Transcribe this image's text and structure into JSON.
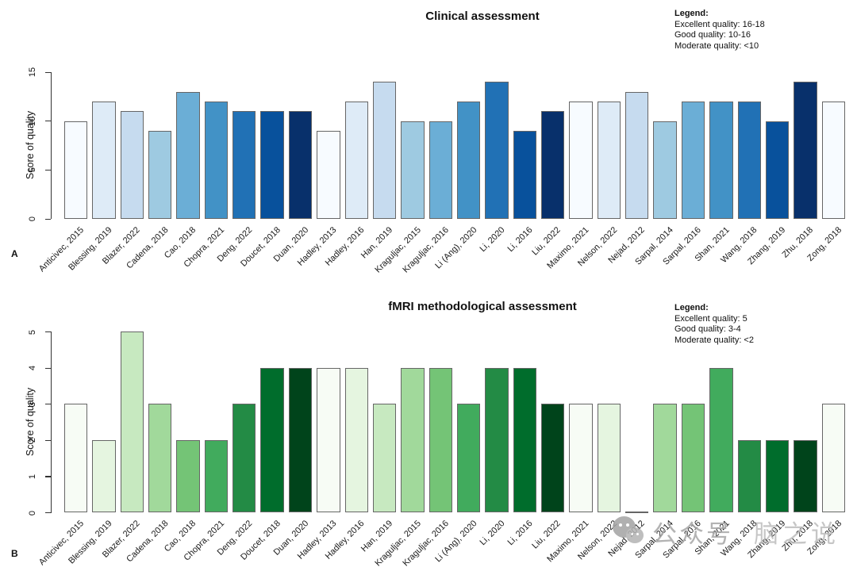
{
  "page": {
    "background": "#ffffff"
  },
  "watermark": {
    "icon": "wechat-logo-icon",
    "prefix": "公众号",
    "name": "脑之说",
    "color": "#a8a8a8"
  },
  "chart_data": [
    {
      "type": "bar",
      "panel_letter": "A",
      "title": "Clinical assessment",
      "ylabel": "Score of quality",
      "xlabel": "",
      "ylim": [
        0,
        15
      ],
      "yticks": [
        0,
        5,
        10,
        15
      ],
      "grid": false,
      "legend_position": "top-right",
      "legend": {
        "heading": "Legend:",
        "lines": [
          "Excellent quality: 16-18",
          "Good quality: 10-16",
          "Moderate quality: <10"
        ]
      },
      "categories": [
        "Anticivec, 2015",
        "Blessing, 2019",
        "Blazer, 2022",
        "Cadena, 2018",
        "Cao, 2018",
        "Chopra, 2021",
        "Deng, 2022",
        "Doucet, 2018",
        "Duan, 2020",
        "Hadley, 2013",
        "Hadley, 2016",
        "Han, 2019",
        "Kraguljac, 2015",
        "Kraguljac, 2016",
        "Li (Ang), 2020",
        "Li, 2020",
        "Li, 2016",
        "Liu, 2022",
        "Maximo, 2021",
        "Nelson, 2022",
        "Nejad, 2012",
        "Sarpal, 2014",
        "Sarpal, 2016",
        "Shan, 2021",
        "Wang, 2018",
        "Zhang, 2019",
        "Zhu, 2018",
        "Zong, 2018"
      ],
      "values": [
        10,
        12,
        11,
        9,
        13,
        12,
        11,
        11,
        11,
        9,
        12,
        14,
        10,
        10,
        12,
        14,
        9,
        11,
        12,
        12,
        13,
        10,
        12,
        12,
        12,
        10,
        14,
        12
      ],
      "palette_cycle": [
        "#F7FBFF",
        "#DEEBF7",
        "#C6DBEF",
        "#9ECAE1",
        "#6BAED6",
        "#4292C6",
        "#2171B5",
        "#08519C",
        "#08306B"
      ],
      "bar_border_color": "#666666"
    },
    {
      "type": "bar",
      "panel_letter": "B",
      "title": "fMRI methodological assessment",
      "ylabel": "Score of quality",
      "xlabel": "",
      "ylim": [
        0,
        5
      ],
      "yticks": [
        0,
        1,
        2,
        3,
        4,
        5
      ],
      "grid": false,
      "legend_position": "top-right",
      "legend": {
        "heading": "Legend:",
        "lines": [
          "Excellent quality: 5",
          "Good quality: 3-4",
          "Moderate quality: <2"
        ]
      },
      "categories": [
        "Anticivec, 2015",
        "Blessing, 2019",
        "Blazer, 2022",
        "Cadena, 2018",
        "Cao, 2018",
        "Chopra, 2021",
        "Deng, 2022",
        "Doucet, 2018",
        "Duan, 2020",
        "Hadley, 2013",
        "Hadley, 2016",
        "Han, 2019",
        "Kraguljac, 2015",
        "Kraguljac, 2016",
        "Li (Ang), 2020",
        "Li, 2020",
        "Li, 2016",
        "Liu, 2022",
        "Maximo, 2021",
        "Nelson, 2022",
        "Nejad, 2012",
        "Sarpal, 2014",
        "Sarpal, 2016",
        "Shan, 2021",
        "Wang, 2018",
        "Zhang, 2019",
        "Zhu, 2018",
        "Zong, 2018"
      ],
      "values": [
        3,
        2,
        5,
        3,
        2,
        2,
        3,
        4,
        4,
        4,
        4,
        3,
        4,
        4,
        3,
        4,
        4,
        3,
        3,
        3,
        0,
        3,
        3,
        4,
        2,
        2,
        2,
        3
      ],
      "palette_cycle": [
        "#F7FCF5",
        "#E5F5E0",
        "#C7E9C0",
        "#A1D99B",
        "#74C476",
        "#41AB5D",
        "#238B45",
        "#006D2C",
        "#00441B"
      ],
      "bar_border_color": "#666666"
    }
  ]
}
